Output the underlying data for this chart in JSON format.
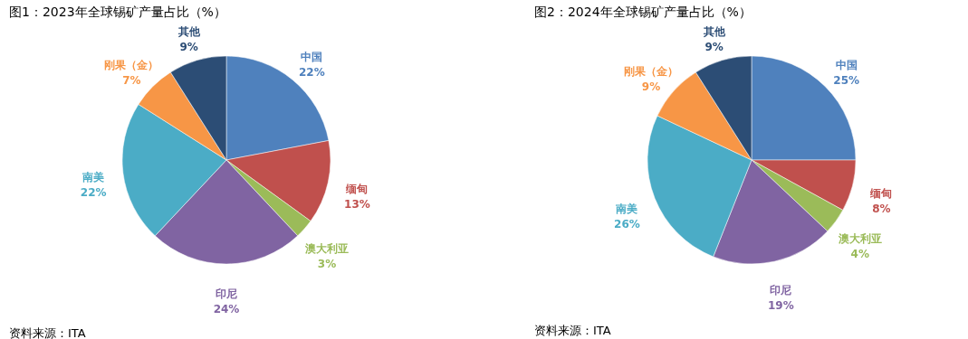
{
  "chart_data": [
    {
      "type": "pie",
      "title": "图1：2023年全球锡矿产量占比（%）",
      "categories": [
        "中国",
        "缅甸",
        "澳大利亚",
        "印尼",
        "南美",
        "刚果（金）",
        "其他"
      ],
      "values": [
        22,
        13,
        3,
        24,
        22,
        7,
        9
      ],
      "colors": [
        "#4f81bd",
        "#c0504d",
        "#9bbb59",
        "#8064a2",
        "#4bacc6",
        "#f79646",
        "#2c4d75"
      ],
      "value_labels": [
        "22%",
        "13%",
        "3%",
        "24%",
        "22%",
        "7%",
        "9%"
      ],
      "annotations": [
        "资料来源：ITA"
      ]
    },
    {
      "type": "pie",
      "title": "图2：2024年全球锡矿产量占比（%）",
      "categories": [
        "中国",
        "缅甸",
        "澳大利亚",
        "印尼",
        "南美",
        "刚果（金）",
        "其他"
      ],
      "values": [
        25,
        8,
        4,
        19,
        26,
        9,
        9
      ],
      "colors": [
        "#4f81bd",
        "#c0504d",
        "#9bbb59",
        "#8064a2",
        "#4bacc6",
        "#f79646",
        "#2c4d75"
      ],
      "value_labels": [
        "25%",
        "8%",
        "4%",
        "19%",
        "26%",
        "9%",
        "9%"
      ],
      "annotations": [
        "资料来源：ITA"
      ]
    }
  ]
}
